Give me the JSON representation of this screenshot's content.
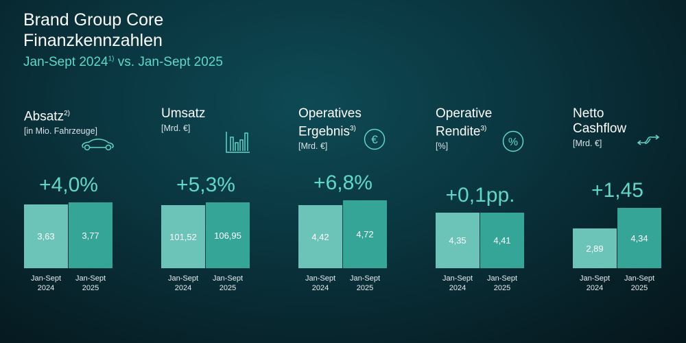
{
  "header": {
    "title1": "Brand Group Core",
    "title2": "Finanzkennzahlen",
    "subtitle_a": "Jan-Sept 2024",
    "subtitle_sup": "1)",
    "subtitle_b": " vs. Jan-Sept 2025"
  },
  "colors": {
    "accent": "#5fd8c8",
    "bar2024": "#6cc4b9",
    "bar2025": "#35a597"
  },
  "chart_data": [
    {
      "type": "bar",
      "title": "Absatz",
      "footnote": "2)",
      "unit": "[in Mio. Fahrzeuge]",
      "icon": "car-icon",
      "change": "+4,0%",
      "categories": [
        "Jan-Sept 2024",
        "Jan-Sept 2025"
      ],
      "values": [
        3.63,
        3.77
      ],
      "labels": [
        "3,63",
        "3,77"
      ]
    },
    {
      "type": "bar",
      "title": "Umsatz",
      "footnote": "",
      "unit": "[Mrd. €]",
      "icon": "bar-chart-icon",
      "change": "+5,3%",
      "categories": [
        "Jan-Sept 2024",
        "Jan-Sept 2025"
      ],
      "values": [
        101.52,
        106.95
      ],
      "labels": [
        "101,52",
        "106,95"
      ]
    },
    {
      "type": "bar",
      "title": "Operatives Ergebnis",
      "footnote": "3)",
      "unit": "[Mrd. €]",
      "icon": "euro-icon",
      "change": "+6,8%",
      "categories": [
        "Jan-Sept 2024",
        "Jan-Sept 2025"
      ],
      "values": [
        4.42,
        4.72
      ],
      "labels": [
        "4,42",
        "4,72"
      ]
    },
    {
      "type": "bar",
      "title": "Operative Rendite",
      "footnote": "3)",
      "unit": "[%]",
      "icon": "percent-icon",
      "change": "+0,1pp.",
      "categories": [
        "Jan-Sept 2024",
        "Jan-Sept 2025"
      ],
      "values": [
        4.35,
        4.41
      ],
      "labels": [
        "4,35",
        "4,41"
      ]
    },
    {
      "type": "bar",
      "title": "Netto Cashflow",
      "footnote": "",
      "unit": "[Mrd. €]",
      "icon": "cashflow-icon",
      "change": "+1,45",
      "categories": [
        "Jan-Sept 2024",
        "Jan-Sept 2025"
      ],
      "values": [
        2.89,
        4.34
      ],
      "labels": [
        "2,89",
        "4,34"
      ]
    }
  ],
  "xlabels": [
    [
      "Jan-Sept",
      "2024"
    ],
    [
      "Jan-Sept",
      "2025"
    ]
  ]
}
